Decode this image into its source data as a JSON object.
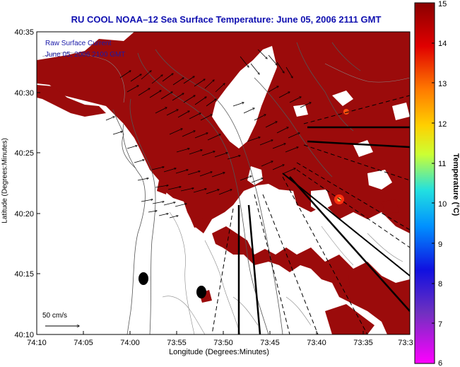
{
  "title": "RU COOL  NOAA–12  Sea Surface Temperature:  June 05, 2006 2111 GMT",
  "overlay": {
    "line1": "Raw Surface Current",
    "line2": "June 05, 2006 2100 GMT"
  },
  "scale_label": "50 cm/s",
  "x_axis": {
    "label": "Longitude (Degrees:Minutes)",
    "ticks": [
      "74:10",
      "74:05",
      "74:00",
      "73:55",
      "73:50",
      "73:45",
      "73:40",
      "73:35",
      "73:3"
    ]
  },
  "y_axis": {
    "label": "Latitude (Degrees:Minutes)",
    "ticks": [
      "40:35",
      "40:30",
      "40:25",
      "40:20",
      "40:15",
      "40:10"
    ]
  },
  "colorbar": {
    "label": "Temperature (°C)",
    "ticks": [
      "15",
      "14",
      "13",
      "12",
      "11",
      "10",
      "9",
      "8",
      "7",
      "6"
    ]
  },
  "colors": {
    "sst_dark_red": "#9b0b0b",
    "title_blue": "#1010b0",
    "overlay_blue": "#1a1aa8"
  }
}
